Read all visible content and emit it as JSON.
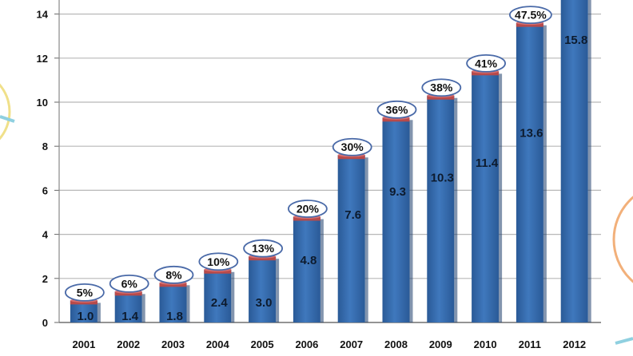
{
  "chart_data": {
    "type": "bar",
    "categories": [
      "2001",
      "2002",
      "2003",
      "2004",
      "2005",
      "2006",
      "2007",
      "2008",
      "2009",
      "2010",
      "2011",
      "2012"
    ],
    "values": [
      1.0,
      1.4,
      1.8,
      2.4,
      3.0,
      4.8,
      7.6,
      9.3,
      10.3,
      11.4,
      13.6,
      15.8
    ],
    "value_labels": [
      "1.0",
      "1.4",
      "1.8",
      "2.4",
      "3.0",
      "4.8",
      "7.6",
      "9.3",
      "10.3",
      "11.4",
      "13.6",
      "15.8"
    ],
    "percent_labels": [
      "5%",
      "6%",
      "8%",
      "10%",
      "13%",
      "20%",
      "30%",
      "36%",
      "38%",
      "41%",
      "47.5%",
      ""
    ],
    "percent_values": [
      5,
      6,
      8,
      10,
      13,
      20,
      30,
      36,
      38,
      41,
      47.5,
      null
    ],
    "y_ticks": [
      "0",
      "2",
      "4",
      "6",
      "8",
      "10",
      "12",
      "14"
    ],
    "ylim": [
      0,
      15
    ],
    "grid": true,
    "title": "",
    "xlabel": "",
    "ylabel": "",
    "colors": {
      "bar": "#3f78bd",
      "bar_dark": "#2a5a97",
      "bar_cap": "#b84a4a",
      "grid": "#b8b8b8",
      "ellipse": "#4a6aa8",
      "deco_teal": "#8fd0e0",
      "deco_orange": "#f2b07a",
      "deco_yellow": "#f0e08a"
    }
  }
}
